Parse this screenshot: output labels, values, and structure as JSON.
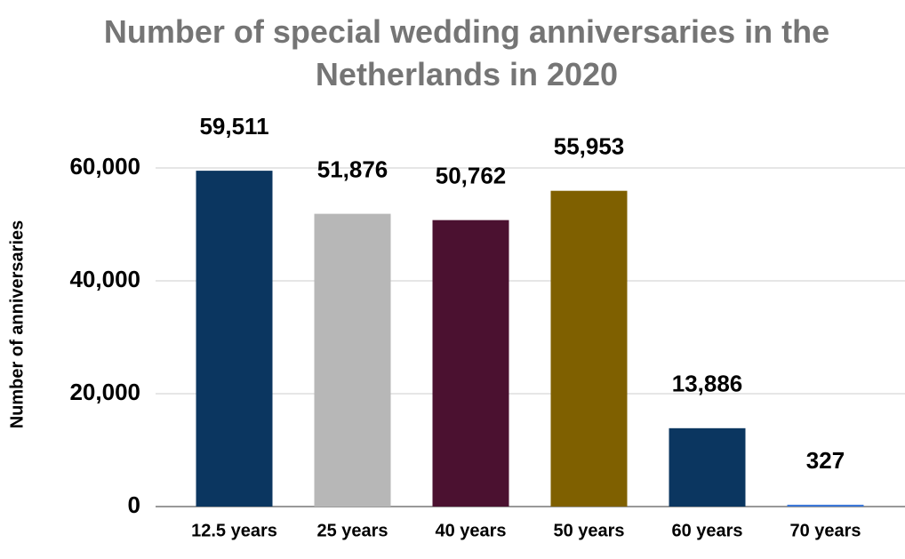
{
  "chart_data": {
    "type": "bar",
    "title": "Number of special wedding anniversaries in the Netherlands in 2020",
    "y_label": "Number of anniversaries",
    "categories": [
      "12.5 years",
      "25 years",
      "40 years",
      "50 years",
      "60 years",
      "70 years"
    ],
    "values": [
      59511,
      51876,
      50762,
      55953,
      13886,
      327
    ],
    "value_labels": [
      "59,511",
      "51,876",
      "50,762",
      "55,953",
      "13,886",
      "327"
    ],
    "colors": [
      "#0b3660",
      "#b7b7b7",
      "#4b1130",
      "#7f6000",
      "#0b3660",
      "#3c78d8"
    ],
    "ylim": [
      0,
      60000
    ],
    "yticks": [
      0,
      {
        "value": 20000,
        "label": "20,000"
      },
      {
        "value": 40000,
        "label": "40,000"
      },
      {
        "value": 60000,
        "label": "60,000"
      }
    ],
    "grid": true
  }
}
